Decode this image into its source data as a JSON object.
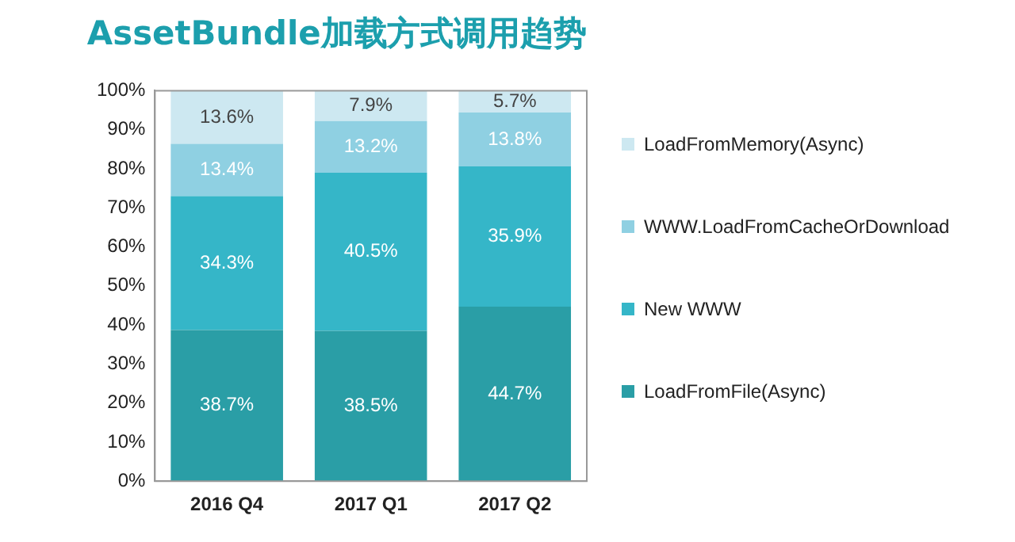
{
  "chart_data": {
    "type": "bar",
    "title": "AssetBundle加载方式调用趋势",
    "stacked": true,
    "categories": [
      "2016 Q4",
      "2017 Q1",
      "2017 Q2"
    ],
    "series": [
      {
        "name": "LoadFromFile(Async)",
        "color": "#2a9ea6",
        "values": [
          38.7,
          38.5,
          44.7
        ]
      },
      {
        "name": "New WWW",
        "color": "#35b6c8",
        "values": [
          34.3,
          40.5,
          35.9
        ]
      },
      {
        "name": "WWW.LoadFromCacheOrDownload",
        "color": "#8fd0e2",
        "values": [
          13.4,
          13.2,
          13.8
        ]
      },
      {
        "name": "LoadFromMemory(Async)",
        "color": "#cde8f1",
        "values": [
          13.6,
          7.9,
          5.7
        ]
      }
    ],
    "ylim": [
      0,
      100
    ],
    "yticks": [
      {
        "value": 0,
        "label": "0%"
      },
      {
        "value": 10,
        "label": "10%"
      },
      {
        "value": 20,
        "label": "20%"
      },
      {
        "value": 30,
        "label": "30%"
      },
      {
        "value": 40,
        "label": "40%"
      },
      {
        "value": 50,
        "label": "50%"
      },
      {
        "value": 60,
        "label": "60%"
      },
      {
        "value": 70,
        "label": "70%"
      },
      {
        "value": 80,
        "label": "80%"
      },
      {
        "value": 90,
        "label": "90%"
      },
      {
        "value": 100,
        "label": "100%"
      }
    ],
    "value_labels": [
      [
        "38.7%",
        "38.5%",
        "44.7%"
      ],
      [
        "34.3%",
        "40.5%",
        "35.9%"
      ],
      [
        "13.4%",
        "13.2%",
        "13.8%"
      ],
      [
        "13.6%",
        "7.9%",
        "5.7%"
      ]
    ],
    "grid": false,
    "legend": "right"
  }
}
